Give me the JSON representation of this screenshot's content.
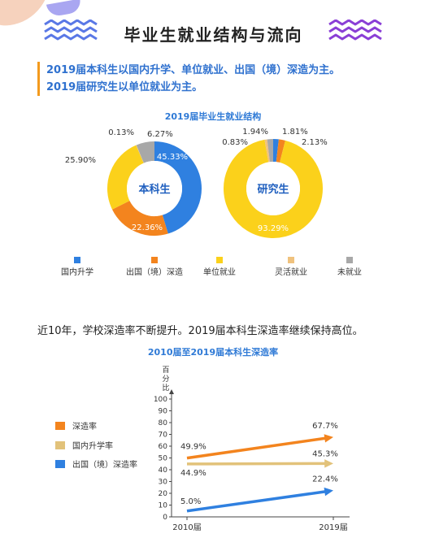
{
  "page": {
    "title": "毕业生就业结构与流向",
    "intro": [
      "2019届本科生以国内升学、单位就业、出国（境）深造为主。",
      "2019届研究生以单位就业为主。"
    ],
    "summary": "近10年，学校深造率不断提升。2019届本科生深造率继续保持高位。"
  },
  "colors": {
    "blue": "#2f80e0",
    "orange": "#f3841e",
    "yellow": "#fbd11b",
    "light_orange": "#f0c27e",
    "gray": "#a8a8a8",
    "accent_blue": "#2f71cf",
    "accent_orange": "#f39a1e",
    "zigzag_blue": "#5a78e6",
    "zigzag_purple": "#8a3fd6"
  },
  "chart_data": [
    {
      "type": "pie",
      "title": "2019届毕业生就业结构",
      "legend": [
        "国内升学",
        "出国（境）深造",
        "单位就业",
        "灵活就业",
        "未就业"
      ],
      "charts": [
        {
          "center_label": "本科生",
          "slices": [
            {
              "category": "国内升学",
              "value": 45.33,
              "label": "45.33%"
            },
            {
              "category": "出国（境）深造",
              "value": 22.36,
              "label": "22.36%"
            },
            {
              "category": "单位就业",
              "value": 25.9,
              "label": "25.90%"
            },
            {
              "category": "灵活就业",
              "value": 0.13,
              "label": "0.13%"
            },
            {
              "category": "未就业",
              "value": 6.27,
              "label": "6.27%"
            }
          ]
        },
        {
          "center_label": "研究生",
          "slices": [
            {
              "category": "国内升学",
              "value": 1.81,
              "label": "1.81%"
            },
            {
              "category": "出国（境）深造",
              "value": 2.13,
              "label": "2.13%"
            },
            {
              "category": "单位就业",
              "value": 93.29,
              "label": "93.29%"
            },
            {
              "category": "灵活就业",
              "value": 0.83,
              "label": "0.83%"
            },
            {
              "category": "未就业",
              "value": 1.94,
              "label": "1.94%"
            }
          ]
        }
      ]
    },
    {
      "type": "line",
      "title": "2010届至2019届本科生深造率",
      "ylabel": "百分比",
      "x": [
        "2010届",
        "2019届"
      ],
      "ylim": [
        0,
        100
      ],
      "yticks": [
        0,
        10,
        20,
        30,
        40,
        50,
        60,
        70,
        80,
        90,
        100
      ],
      "series": [
        {
          "name": "深造率",
          "values": [
            49.9,
            67.7
          ],
          "labels": [
            "49.9%",
            "67.7%"
          ],
          "color": "#f3841e"
        },
        {
          "name": "国内升学率",
          "values": [
            44.9,
            45.3
          ],
          "labels": [
            "44.9%",
            "45.3%"
          ],
          "color": "#e2c27a"
        },
        {
          "name": "出国（境）深造率",
          "values": [
            5.0,
            22.4
          ],
          "labels": [
            "5.0%",
            "22.4%"
          ],
          "color": "#2f80e0"
        }
      ]
    }
  ]
}
